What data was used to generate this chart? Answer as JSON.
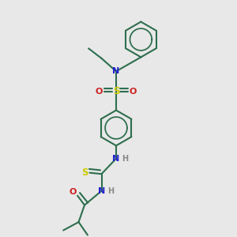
{
  "bg_color": "#e8e8e8",
  "bond_color": "#2d6e4e",
  "N_color": "#2222cc",
  "O_color": "#cc2020",
  "S_color": "#cccc00",
  "H_color": "#888888",
  "lw": 1.5,
  "figsize": [
    3.0,
    3.0
  ],
  "dpi": 100,
  "xlim": [
    0,
    1
  ],
  "ylim": [
    0,
    1
  ]
}
